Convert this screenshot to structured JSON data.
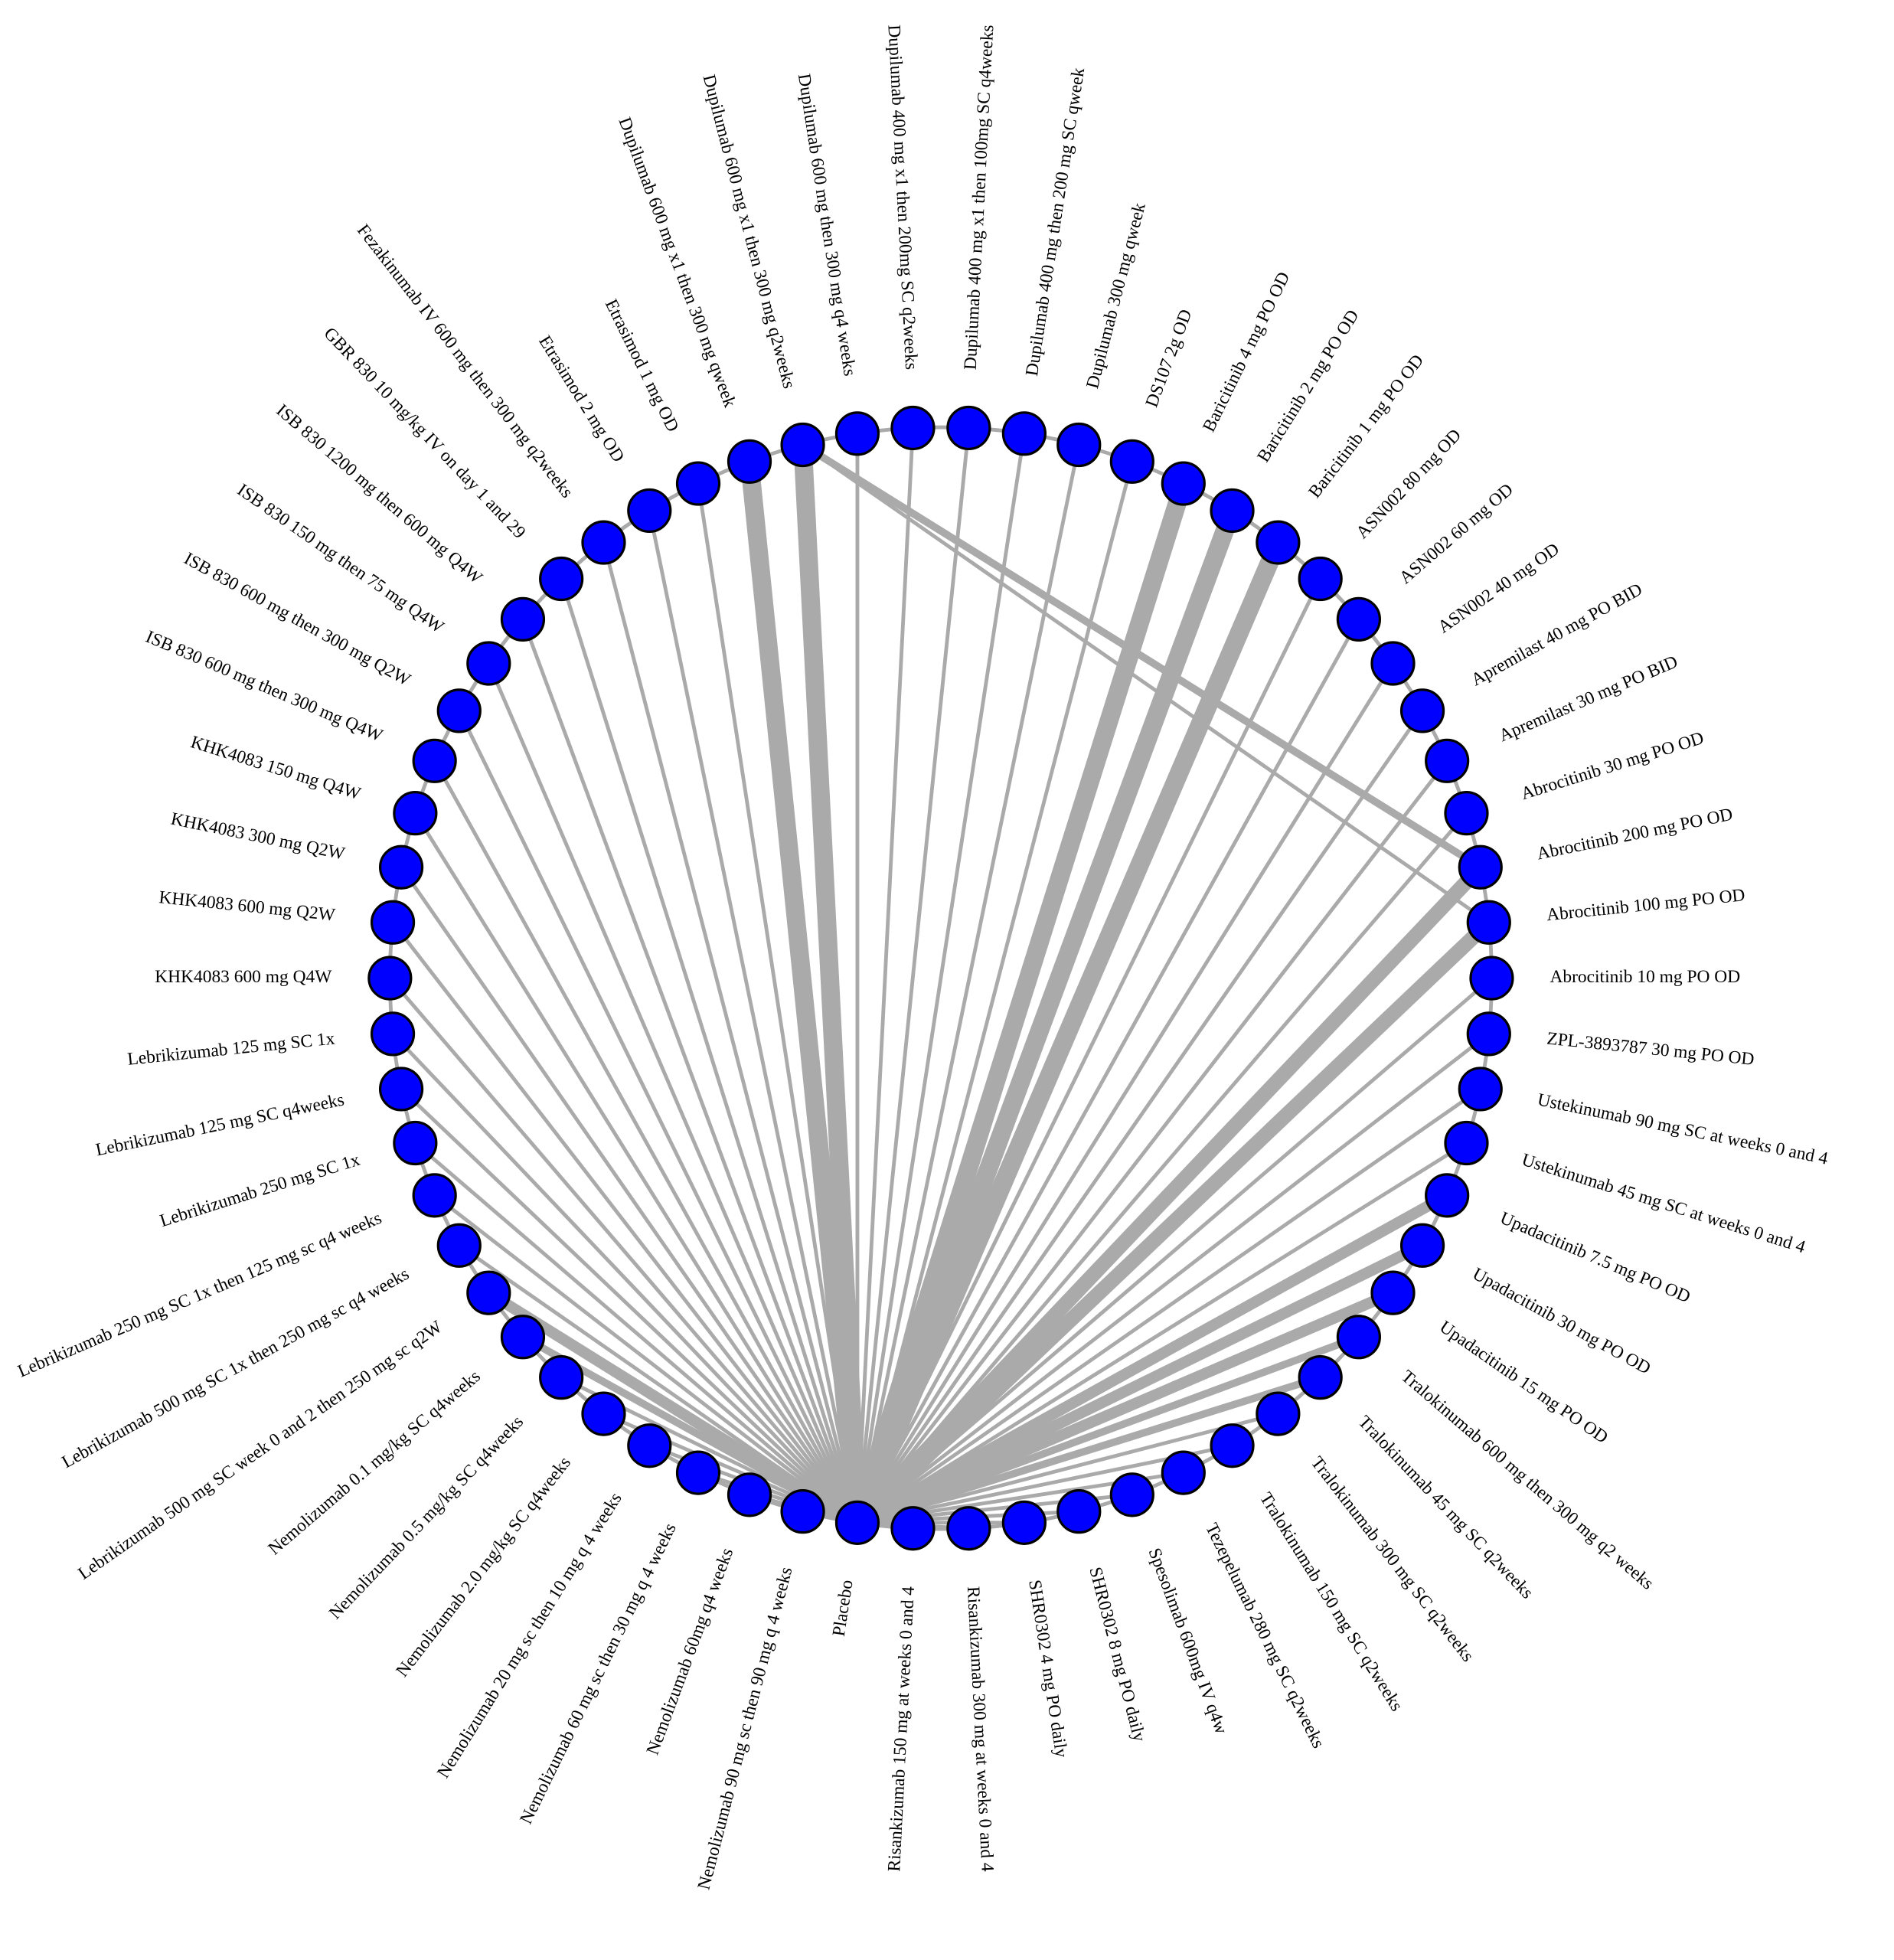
{
  "nodes": [
    {
      "label": "Dupilumab 400 mg x1 then 100mg SC q4weeks"
    },
    {
      "label": "Dupilumab 400 mg then 200 mg SC qweek"
    },
    {
      "label": "Dupilumab 300 mg qweek"
    },
    {
      "label": "DS107 2g OD"
    },
    {
      "label": "Baricitinib 4 mg PO OD"
    },
    {
      "label": "Baricitinib 2 mg PO OD"
    },
    {
      "label": "Baricitinib 1 mg PO OD"
    },
    {
      "label": "ASN002 80 mg OD"
    },
    {
      "label": "ASN002 60 mg OD"
    },
    {
      "label": "ASN002 40 mg OD"
    },
    {
      "label": "Apremilast 40 mg PO BID"
    },
    {
      "label": "Apremilast 30 mg PO BID"
    },
    {
      "label": "Abrocitinib 30 mg PO OD"
    },
    {
      "label": "Abrocitinib 200 mg PO OD"
    },
    {
      "label": "Abrocitinib 100 mg PO OD"
    },
    {
      "label": "Abrocitinib 10 mg PO OD"
    },
    {
      "label": "ZPL-3893787 30 mg PO OD"
    },
    {
      "label": "Ustekinumab 90 mg SC at weeks 0 and 4"
    },
    {
      "label": "Ustekinumab 45 mg SC at weeks 0 and 4"
    },
    {
      "label": "Upadacitinib 7.5 mg PO OD"
    },
    {
      "label": "Upadacitinib 30 mg PO OD"
    },
    {
      "label": "Upadacitinib 15 mg PO OD"
    },
    {
      "label": "Tralokinumab 600 mg then 300 mg q2 weeks"
    },
    {
      "label": "Tralokinumab 45 mg SC q2weeks"
    },
    {
      "label": "Tralokinumab 300 mg SC q2weeks"
    },
    {
      "label": "Tralokinumab 150 mg SC q2weeks"
    },
    {
      "label": "Tezepelumab 280 mg SC q2weeks"
    },
    {
      "label": "Spesolimab 600mg IV q4w"
    },
    {
      "label": "SHR0302 8 mg PO daily"
    },
    {
      "label": "SHR0302 4 mg PO daily"
    },
    {
      "label": "Risankizumab 300 mg at weeks 0 and 4"
    },
    {
      "label": "Risankizumab 150 mg at weeks 0 and 4"
    },
    {
      "label": "Placebo"
    },
    {
      "label": "Nemolizumab 90 mg sc then 90 mg q 4 weeks"
    },
    {
      "label": "Nemolizumab 60mg q4 weeks"
    },
    {
      "label": "Nemolizumab 60 mg sc then 30 mg q 4 weeks"
    },
    {
      "label": "Nemolizumab 20 mg sc then 10 mg q 4 weeks"
    },
    {
      "label": "Nemolizumab 2.0 mg/kg SC q4weeks"
    },
    {
      "label": "Nemolizumab 0.5 mg/kg SC q4weeks"
    },
    {
      "label": "Nemolizumab 0.1 mg/kg SC q4weeks"
    },
    {
      "label": "Lebrikizumab 500 mg SC week 0 and 2 then 250 mg sc q2W"
    },
    {
      "label": "Lebrikizumab 500 mg SC 1x then 250 mg sc q4 weeks"
    },
    {
      "label": "Lebrikizumab 250 mg SC 1x then 125 mg sc q4 weeks"
    },
    {
      "label": "Lebrikizumab 250 mg SC 1x"
    },
    {
      "label": "Lebrikizumab 125 mg SC q4weeks"
    },
    {
      "label": "Lebrikizumab 125 mg SC 1x"
    },
    {
      "label": "KHK4083 600 mg Q4W"
    },
    {
      "label": "KHK4083 600 mg Q2W"
    },
    {
      "label": "KHK4083 300 mg Q2W"
    },
    {
      "label": "KHK4083 150 mg Q4W"
    },
    {
      "label": "ISB 830 600 mg then 300 mg Q4W"
    },
    {
      "label": "ISB 830 600 mg then 300 mg Q2W"
    },
    {
      "label": "ISB 830 150 mg then 75 mg Q4W"
    },
    {
      "label": "ISB 830 1200 mg then 600 mg Q4W"
    },
    {
      "label": "GBR 830 10 mg/kg IV on day 1 and 29"
    },
    {
      "label": "Fezakinumab IV 600 mg then 300 mg q2weeks"
    },
    {
      "label": "Etrasimod 2 mg OD"
    },
    {
      "label": "Etrasimod 1 mg OD"
    },
    {
      "label": "Dupilumab 600 mg x1 then 300 mg qweek"
    },
    {
      "label": "Dupilumab 600 mg x1 then 300 mg q2weeks"
    },
    {
      "label": "Dupilumab 600 mg then 300 mg q4 weeks"
    },
    {
      "label": "Dupilumab 400 mg x1 then 200mg SC q2weeks"
    }
  ],
  "hub": 32,
  "edges": [
    {
      "source": 0,
      "target": 32,
      "weight": 1
    },
    {
      "source": 1,
      "target": 32,
      "weight": 1
    },
    {
      "source": 2,
      "target": 32,
      "weight": 1
    },
    {
      "source": 3,
      "target": 32,
      "weight": 1
    },
    {
      "source": 4,
      "target": 32,
      "weight": 5
    },
    {
      "source": 5,
      "target": 32,
      "weight": 5
    },
    {
      "source": 6,
      "target": 32,
      "weight": 5
    },
    {
      "source": 7,
      "target": 32,
      "weight": 1
    },
    {
      "source": 8,
      "target": 32,
      "weight": 1
    },
    {
      "source": 9,
      "target": 32,
      "weight": 1
    },
    {
      "source": 10,
      "target": 32,
      "weight": 1
    },
    {
      "source": 11,
      "target": 32,
      "weight": 1
    },
    {
      "source": 12,
      "target": 32,
      "weight": 1
    },
    {
      "source": 13,
      "target": 32,
      "weight": 4
    },
    {
      "source": 14,
      "target": 32,
      "weight": 4
    },
    {
      "source": 15,
      "target": 32,
      "weight": 1
    },
    {
      "source": 16,
      "target": 32,
      "weight": 1
    },
    {
      "source": 17,
      "target": 32,
      "weight": 1
    },
    {
      "source": 18,
      "target": 32,
      "weight": 1
    },
    {
      "source": 19,
      "target": 32,
      "weight": 3
    },
    {
      "source": 20,
      "target": 32,
      "weight": 3
    },
    {
      "source": 21,
      "target": 32,
      "weight": 3
    },
    {
      "source": 22,
      "target": 32,
      "weight": 2
    },
    {
      "source": 23,
      "target": 32,
      "weight": 2
    },
    {
      "source": 24,
      "target": 32,
      "weight": 1
    },
    {
      "source": 25,
      "target": 32,
      "weight": 1
    },
    {
      "source": 26,
      "target": 32,
      "weight": 1
    },
    {
      "source": 27,
      "target": 32,
      "weight": 1
    },
    {
      "source": 28,
      "target": 32,
      "weight": 1
    },
    {
      "source": 29,
      "target": 32,
      "weight": 1
    },
    {
      "source": 30,
      "target": 32,
      "weight": 1
    },
    {
      "source": 31,
      "target": 32,
      "weight": 1
    },
    {
      "source": 33,
      "target": 32,
      "weight": 1
    },
    {
      "source": 34,
      "target": 32,
      "weight": 1
    },
    {
      "source": 35,
      "target": 32,
      "weight": 1
    },
    {
      "source": 36,
      "target": 32,
      "weight": 1
    },
    {
      "source": 37,
      "target": 32,
      "weight": 1
    },
    {
      "source": 38,
      "target": 32,
      "weight": 1
    },
    {
      "source": 39,
      "target": 32,
      "weight": 2
    },
    {
      "source": 40,
      "target": 32,
      "weight": 3
    },
    {
      "source": 41,
      "target": 32,
      "weight": 1
    },
    {
      "source": 42,
      "target": 32,
      "weight": 1
    },
    {
      "source": 43,
      "target": 32,
      "weight": 1
    },
    {
      "source": 44,
      "target": 32,
      "weight": 1
    },
    {
      "source": 45,
      "target": 32,
      "weight": 1
    },
    {
      "source": 46,
      "target": 32,
      "weight": 1
    },
    {
      "source": 47,
      "target": 32,
      "weight": 1
    },
    {
      "source": 48,
      "target": 32,
      "weight": 1
    },
    {
      "source": 49,
      "target": 32,
      "weight": 1
    },
    {
      "source": 50,
      "target": 32,
      "weight": 1
    },
    {
      "source": 51,
      "target": 32,
      "weight": 1
    },
    {
      "source": 52,
      "target": 32,
      "weight": 1
    },
    {
      "source": 53,
      "target": 32,
      "weight": 1
    },
    {
      "source": 54,
      "target": 32,
      "weight": 1
    },
    {
      "source": 55,
      "target": 32,
      "weight": 1
    },
    {
      "source": 56,
      "target": 32,
      "weight": 1
    },
    {
      "source": 57,
      "target": 32,
      "weight": 1
    },
    {
      "source": 58,
      "target": 32,
      "weight": 5
    },
    {
      "source": 59,
      "target": 32,
      "weight": 5
    },
    {
      "source": 60,
      "target": 32,
      "weight": 1
    },
    {
      "source": 61,
      "target": 32,
      "weight": 1
    },
    {
      "source": 59,
      "target": 13,
      "weight": 2
    },
    {
      "source": 59,
      "target": 14,
      "weight": 1
    }
  ]
}
